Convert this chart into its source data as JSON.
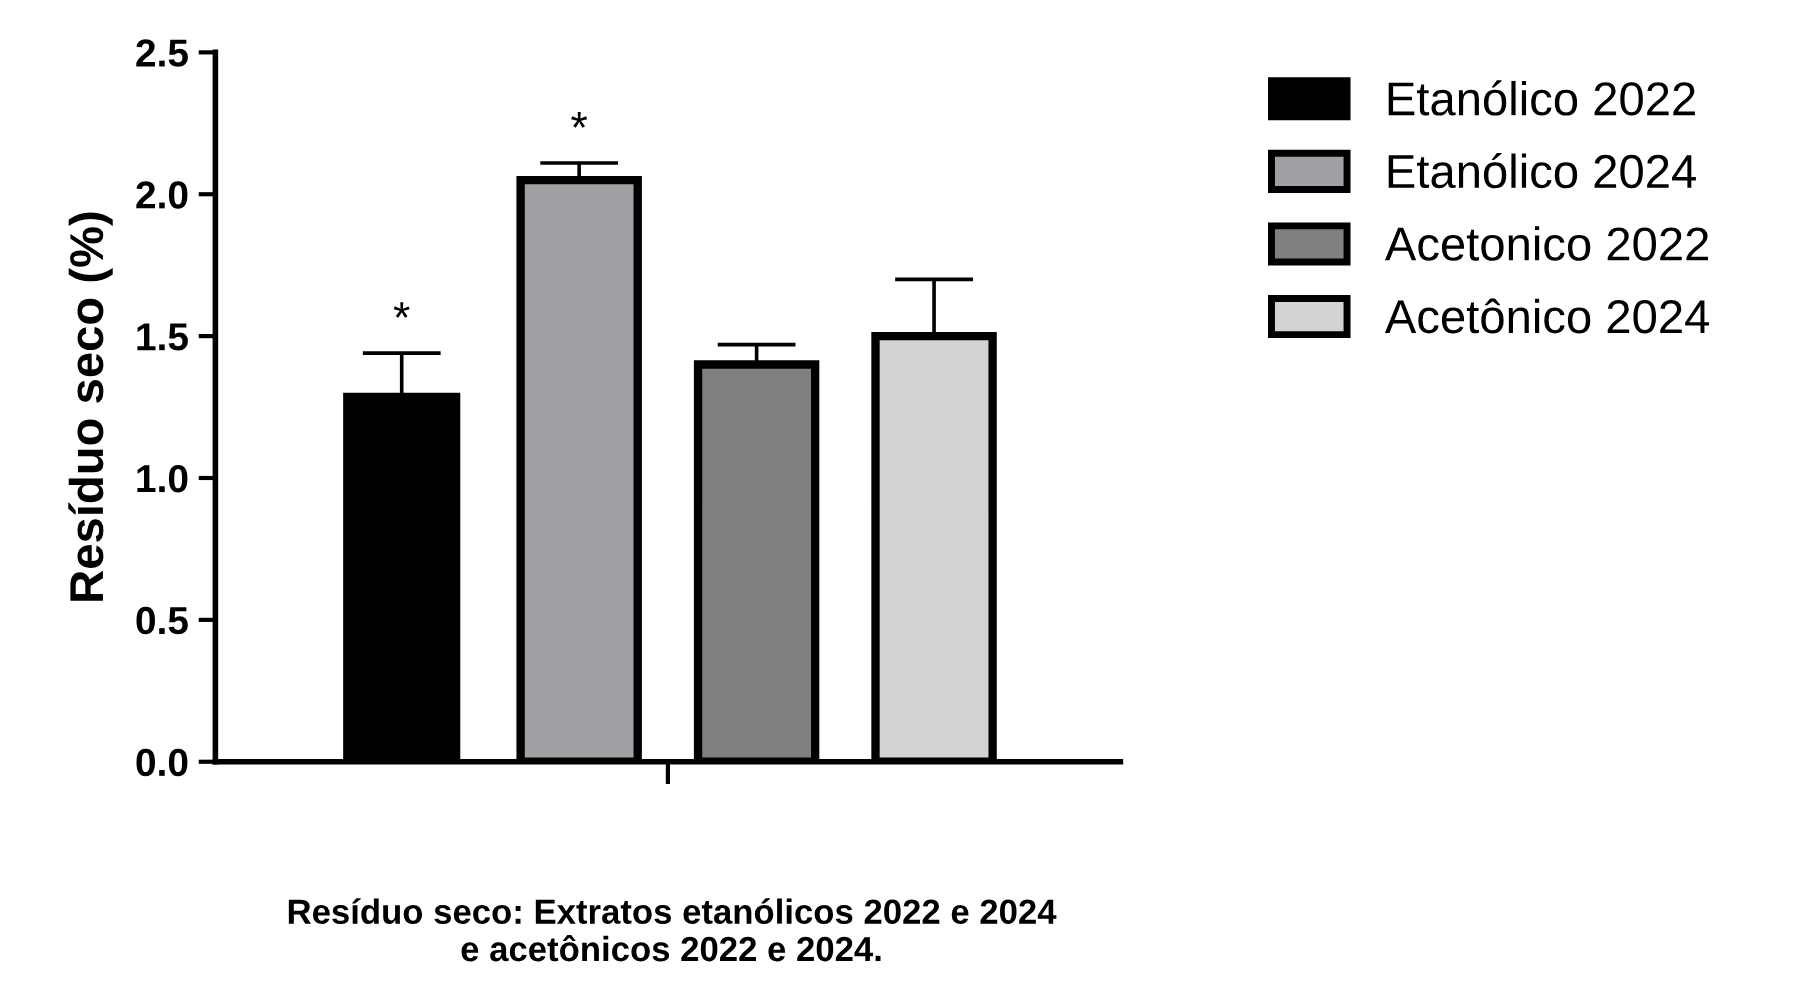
{
  "chart_data": {
    "type": "bar",
    "ylabel": "Resíduo seco (%)",
    "categories": [
      null
    ],
    "series": [
      {
        "name": "Etanólico 2022",
        "color": "#000000",
        "values": [
          1.3
        ],
        "errors": [
          0.14
        ]
      },
      {
        "name": "Etanólico 2024",
        "color": "#a09fa4",
        "values": [
          2.05
        ],
        "errors": [
          0.06
        ]
      },
      {
        "name": "Acetonico 2022",
        "color": "#808080",
        "values": [
          1.4
        ],
        "errors": [
          0.07
        ]
      },
      {
        "name": "Acetônico 2024",
        "color": "#d3d3d3",
        "values": [
          1.5
        ],
        "errors": [
          0.2
        ]
      }
    ],
    "ylim": [
      0,
      2.5
    ],
    "yticks": [
      {
        "value": 0,
        "label": "0.0"
      },
      0.5,
      {
        "value": 1,
        "label": "1.0"
      },
      1.5,
      {
        "value": 2,
        "label": "2.0"
      },
      2.5
    ],
    "annotations": [
      "*",
      "*",
      "Resíduo seco: Extratos etanólicos 2022 e 2024\ne acetônicos 2022 e 2024."
    ],
    "legend": "top right",
    "grid": false
  }
}
